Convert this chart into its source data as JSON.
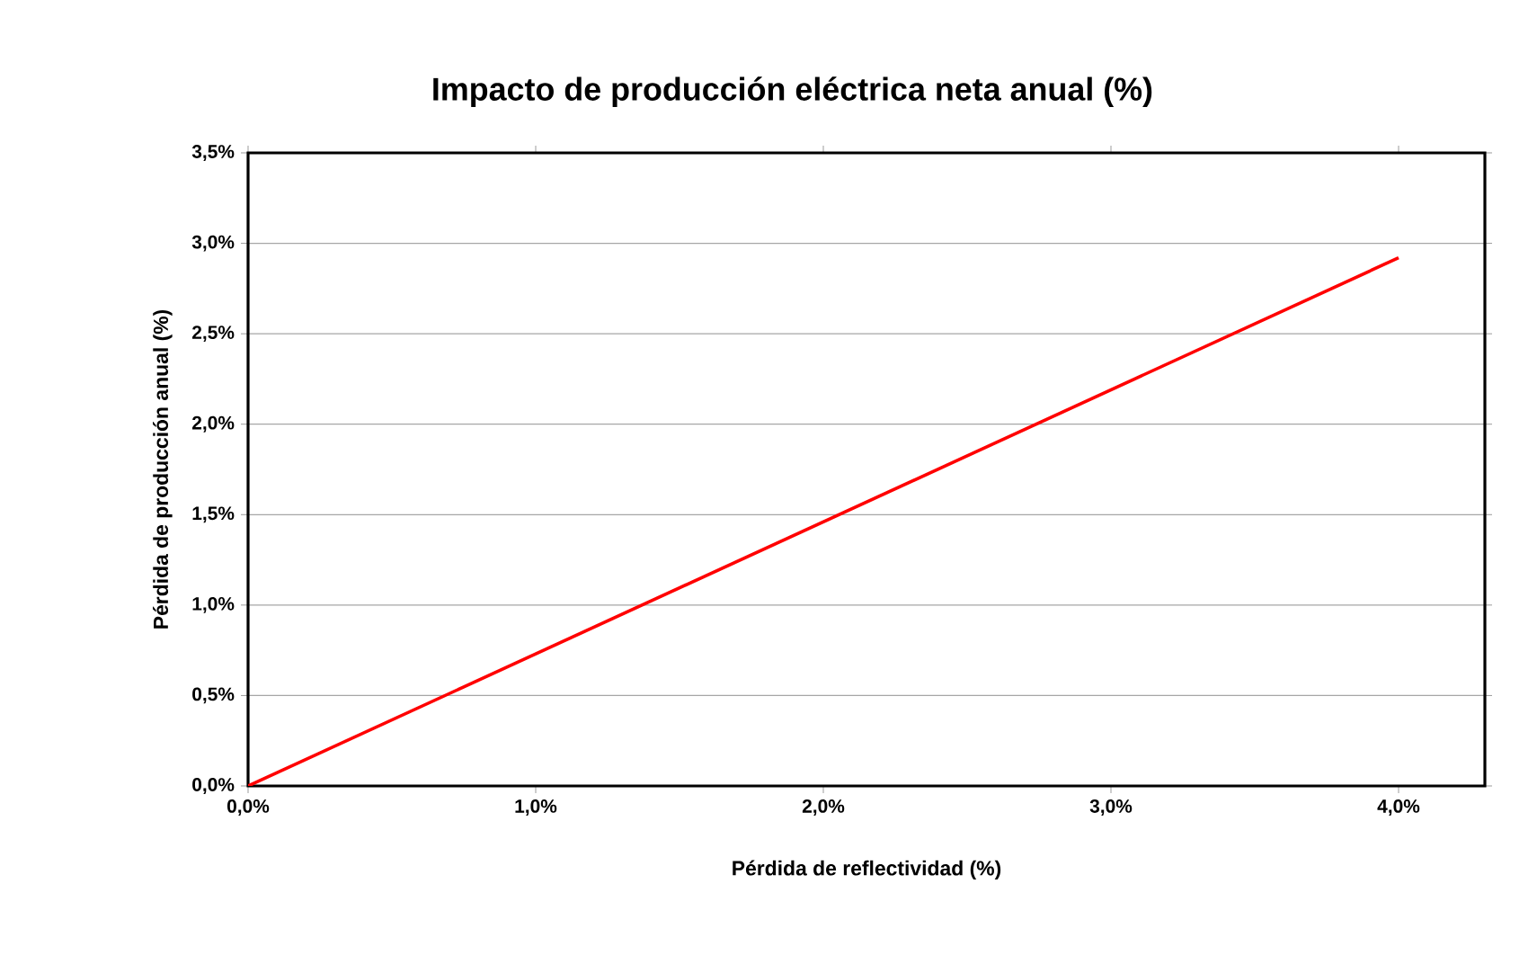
{
  "chart_data": {
    "type": "line",
    "title": "Impacto de producción eléctrica neta anual (%)",
    "xlabel": "Pérdida de reflectividad (%)",
    "ylabel": "Pérdida de producción anual (%)",
    "x": [
      0,
      4.0
    ],
    "series": [
      {
        "color": "#ff0000",
        "values": [
          0,
          2.92
        ]
      }
    ],
    "xlim": [
      0,
      4.3
    ],
    "ylim": [
      0,
      3.5
    ],
    "xticks": [
      {
        "value": 0,
        "label": "0,0%"
      },
      {
        "value": 1,
        "label": "1,0%"
      },
      {
        "value": 2,
        "label": "2,0%"
      },
      {
        "value": 3,
        "label": "3,0%"
      },
      {
        "value": 4,
        "label": "4,0%"
      }
    ],
    "yticks": [
      {
        "value": 0,
        "label": "0,0%"
      },
      {
        "value": 0.5,
        "label": "0,5%"
      },
      {
        "value": 1,
        "label": "1,0%"
      },
      {
        "value": 1.5,
        "label": "1,5%"
      },
      {
        "value": 2,
        "label": "2,0%"
      },
      {
        "value": 2.5,
        "label": "2,5%"
      },
      {
        "value": 3,
        "label": "3,0%"
      },
      {
        "value": 3.5,
        "label": "3,5%"
      }
    ],
    "grid": "y",
    "marker": "none",
    "line_style": "solid"
  }
}
